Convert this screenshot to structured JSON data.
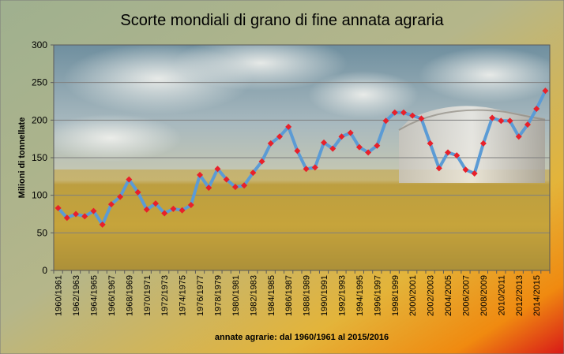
{
  "chart_data": {
    "type": "line",
    "title": "Scorte mondiali di grano di fine annata agraria",
    "xlabel": "annate agrarie: dal 1960/1961 al 2015/2016",
    "ylabel": "Milioni di tonnellate",
    "ylim": [
      0,
      300
    ],
    "yticks": [
      0,
      50,
      100,
      150,
      200,
      250,
      300
    ],
    "grid": true,
    "legend": "none",
    "colors": {
      "line": "#5b9bd5",
      "marker": "#e8202a",
      "frame": "#5a5a5a"
    },
    "categories": [
      "1960/1961",
      "1961/1962",
      "1962/1963",
      "1963/1964",
      "1964/1965",
      "1965/1966",
      "1966/1967",
      "1967/1968",
      "1968/1969",
      "1969/1970",
      "1970/1971",
      "1971/1972",
      "1972/1973",
      "1973/1974",
      "1974/1975",
      "1975/1976",
      "1976/1977",
      "1977/1978",
      "1978/1979",
      "1979/1980",
      "1980/1981",
      "1981/1982",
      "1982/1983",
      "1983/1984",
      "1984/1985",
      "1985/1986",
      "1986/1987",
      "1987/1988",
      "1988/1989",
      "1989/1990",
      "1990/1991",
      "1991/1992",
      "1992/1993",
      "1993/1994",
      "1994/1995",
      "1995/1996",
      "1996/1997",
      "1997/1998",
      "1998/1999",
      "1999/2000",
      "2000/2001",
      "2001/2002",
      "2002/2003",
      "2003/2004",
      "2004/2005",
      "2005/2006",
      "2006/2007",
      "2007/2008",
      "2008/2009",
      "2009/2010",
      "2010/2011",
      "2011/2012",
      "2012/2013",
      "2013/2014",
      "2014/2015",
      "2015/2016"
    ],
    "tick_labels": [
      "1960/1961",
      "1962/1963",
      "1964/1965",
      "1966/1967",
      "1968/1969",
      "1970/1971",
      "1972/1973",
      "1974/1975",
      "1976/1977",
      "1978/1979",
      "1980/1981",
      "1982/1983",
      "1984/1985",
      "1986/1987",
      "1988/1989",
      "1990/1991",
      "1992/1993",
      "1994/1995",
      "1996/1997",
      "1998/1999",
      "2000/2001",
      "2002/2003",
      "2004/2005",
      "2006/2007",
      "2008/2009",
      "2010/2011",
      "2012/2013",
      "2014/2015"
    ],
    "series": [
      {
        "values": [
          83,
          70,
          75,
          72,
          79,
          61,
          88,
          98,
          121,
          104,
          81,
          89,
          76,
          82,
          80,
          87,
          127,
          110,
          135,
          121,
          111,
          113,
          130,
          145,
          169,
          178,
          191,
          159,
          135,
          137,
          170,
          162,
          178,
          183,
          164,
          157,
          166,
          199,
          210,
          210,
          206,
          202,
          169,
          136,
          157,
          153,
          134,
          129,
          169,
          203,
          199,
          199,
          178,
          194,
          215,
          239
        ]
      }
    ]
  }
}
